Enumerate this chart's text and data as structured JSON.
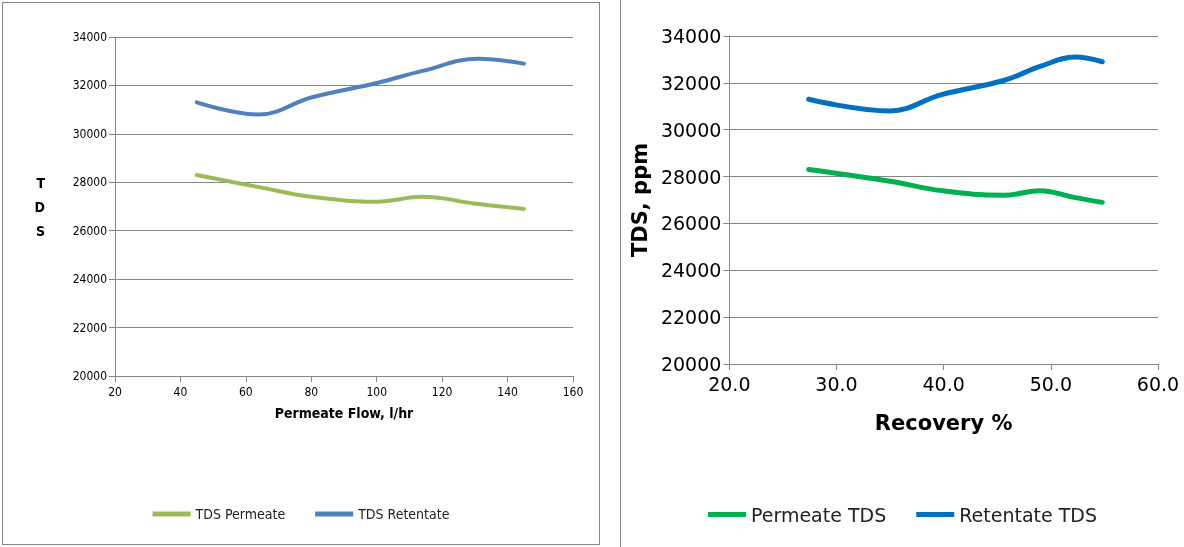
{
  "chart_data": [
    {
      "type": "line",
      "xlabel": "Permeate Flow, l/hr",
      "ylabel": "TDS",
      "xlim": [
        20,
        160
      ],
      "xticks": [
        20,
        40,
        60,
        80,
        100,
        120,
        140,
        160
      ],
      "ylim": [
        20000,
        34000
      ],
      "yticks": [
        20000,
        22000,
        24000,
        26000,
        28000,
        30000,
        32000,
        34000
      ],
      "grid": "y",
      "legend": "bottom",
      "marker": "none",
      "x": [
        45,
        64,
        80,
        100,
        114,
        131,
        145
      ],
      "series": [
        {
          "name": "TDS Permeate",
          "color": "#9bbb59",
          "values": [
            28300,
            27800,
            27400,
            27200,
            27400,
            27100,
            26900
          ]
        },
        {
          "name": "TDS Retentate",
          "color": "#4f81bd",
          "values": [
            31300,
            30800,
            31500,
            32100,
            32600,
            33100,
            32900
          ]
        }
      ]
    },
    {
      "type": "line",
      "xlabel": "Recovery %",
      "ylabel": "TDS, ppm",
      "xlim": [
        20,
        60
      ],
      "xticks": [
        {
          "value": 20,
          "label": "20.0"
        },
        {
          "value": 30,
          "label": "30.0"
        },
        {
          "value": 40,
          "label": "40.0"
        },
        {
          "value": 50,
          "label": "50.0"
        },
        {
          "value": 60,
          "label": "60.0"
        }
      ],
      "ylim": [
        20000,
        34000
      ],
      "yticks": [
        20000,
        22000,
        24000,
        26000,
        28000,
        30000,
        32000,
        34000
      ],
      "grid": "y",
      "legend": "bottom",
      "marker": "none",
      "x": [
        27.4,
        35,
        39.8,
        45.6,
        49,
        52.3,
        54.8
      ],
      "series": [
        {
          "name": "Permeate TDS",
          "color": "#00b050",
          "values": [
            28300,
            27800,
            27400,
            27200,
            27400,
            27100,
            26900
          ]
        },
        {
          "name": "Retentate TDS",
          "color": "#0070c0",
          "values": [
            31300,
            30800,
            31500,
            32100,
            32700,
            33100,
            32900
          ]
        }
      ]
    }
  ]
}
